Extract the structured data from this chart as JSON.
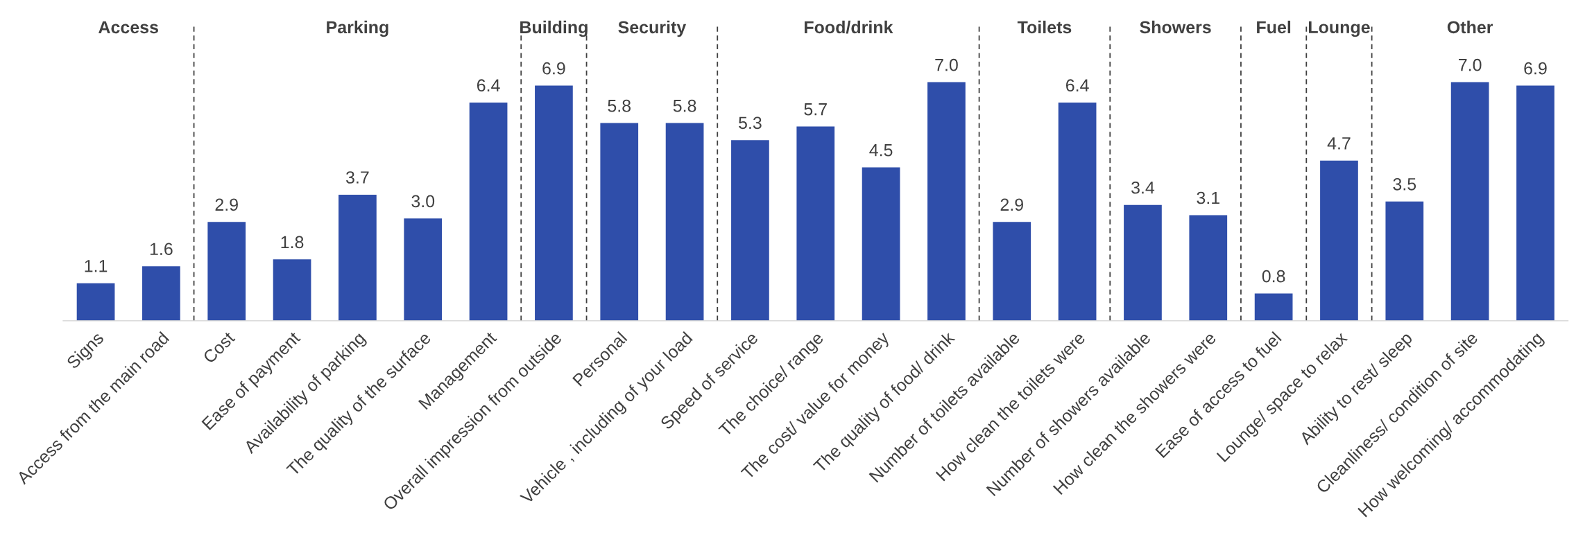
{
  "chart_data": {
    "type": "bar",
    "categories": [
      "Signs",
      "Access from the main road",
      "Cost",
      "Ease of payment",
      "Availability of parking",
      "The quality of the surface",
      "Management",
      "Overall impression from outside",
      "Personal",
      "Vehicle , including of your load",
      "Speed of service",
      "The choice/ range",
      "The cost/ value for money",
      "The quality of food/ drink",
      "Number of toilets available",
      "How clean the toilets were",
      "Number of showers available",
      "How clean the showers were",
      "Ease of access to fuel",
      "Lounge/ space to relax",
      "Ability to rest/ sleep",
      "Cleanliness/ condition of site",
      "How welcoming/ accommodating"
    ],
    "values": [
      1.1,
      1.6,
      2.9,
      1.8,
      3.7,
      3.0,
      6.4,
      6.9,
      5.8,
      5.8,
      5.3,
      5.7,
      4.5,
      7.0,
      2.9,
      6.4,
      3.4,
      3.1,
      0.8,
      4.7,
      3.5,
      7.0,
      6.9
    ],
    "value_labels": [
      "1.1",
      "1.6",
      "2.9",
      "1.8",
      "3.7",
      "3.0",
      "6.4",
      "6.9",
      "5.8",
      "5.8",
      "5.3",
      "5.7",
      "4.5",
      "7.0",
      "2.9",
      "6.4",
      "3.4",
      "3.1",
      "0.8",
      "4.7",
      "3.5",
      "7.0",
      "6.9"
    ],
    "color": "#2f4eaa",
    "annotations": [
      "Access",
      "Parking",
      "Building",
      "Security",
      "Food/drink",
      "Toilets",
      "Showers",
      "Fuel",
      "Lounge",
      "Other"
    ]
  }
}
